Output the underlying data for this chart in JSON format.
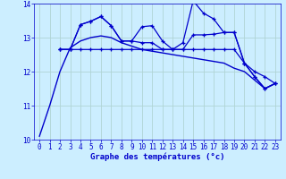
{
  "xlabel": "Graphe des températures (°c)",
  "background_color": "#cceeff",
  "grid_color": "#b0d4d4",
  "line_color": "#0000cc",
  "xlim": [
    -0.5,
    23.5
  ],
  "ylim": [
    10.0,
    14.0
  ],
  "yticks": [
    10,
    11,
    12,
    13,
    14
  ],
  "xticks": [
    0,
    1,
    2,
    3,
    4,
    5,
    6,
    7,
    8,
    9,
    10,
    11,
    12,
    13,
    14,
    15,
    16,
    17,
    18,
    19,
    20,
    21,
    22,
    23
  ],
  "series": [
    {
      "x": [
        0,
        1,
        2,
        3,
        4,
        5,
        6,
        7,
        8,
        9,
        10,
        11,
        12,
        13,
        14,
        15,
        16,
        17,
        18,
        19,
        20,
        21,
        22,
        23
      ],
      "y": [
        10.1,
        11.0,
        12.0,
        12.7,
        12.9,
        13.0,
        13.05,
        13.0,
        12.85,
        12.75,
        12.65,
        12.6,
        12.55,
        12.5,
        12.45,
        12.4,
        12.35,
        12.3,
        12.25,
        12.1,
        12.0,
        11.75,
        11.5,
        11.65
      ],
      "marker": null,
      "linewidth": 1.0
    },
    {
      "x": [
        2,
        3,
        4,
        5,
        6,
        7,
        8,
        9,
        10,
        11,
        12,
        13,
        14,
        15,
        16,
        17,
        18,
        19,
        20,
        21,
        22,
        23
      ],
      "y": [
        12.65,
        12.65,
        13.38,
        13.48,
        13.62,
        13.35,
        12.9,
        12.9,
        13.32,
        13.35,
        12.9,
        12.65,
        12.65,
        13.08,
        13.08,
        13.1,
        13.15,
        13.15,
        12.25,
        11.85,
        11.5,
        11.65
      ],
      "marker": "+",
      "linewidth": 0.9
    },
    {
      "x": [
        2,
        3,
        4,
        5,
        6,
        7,
        8,
        9,
        10,
        11,
        12,
        13,
        14,
        15,
        16,
        17,
        18,
        19,
        20,
        21,
        22,
        23
      ],
      "y": [
        12.65,
        12.65,
        13.38,
        13.48,
        13.62,
        13.35,
        12.9,
        12.9,
        12.85,
        12.85,
        12.65,
        12.65,
        12.85,
        14.08,
        13.72,
        13.55,
        13.15,
        13.15,
        12.25,
        11.85,
        11.5,
        11.65
      ],
      "marker": "+",
      "linewidth": 0.9
    },
    {
      "x": [
        2,
        3,
        4,
        5,
        6,
        7,
        8,
        9,
        10,
        11,
        12,
        13,
        14,
        15,
        16,
        17,
        18,
        19,
        20,
        21,
        22,
        23
      ],
      "y": [
        12.65,
        12.65,
        12.65,
        12.65,
        12.65,
        12.65,
        12.65,
        12.65,
        12.65,
        12.65,
        12.65,
        12.65,
        12.65,
        12.65,
        12.65,
        12.65,
        12.65,
        12.65,
        12.25,
        12.0,
        11.85,
        11.65
      ],
      "marker": "+",
      "linewidth": 0.9
    }
  ]
}
